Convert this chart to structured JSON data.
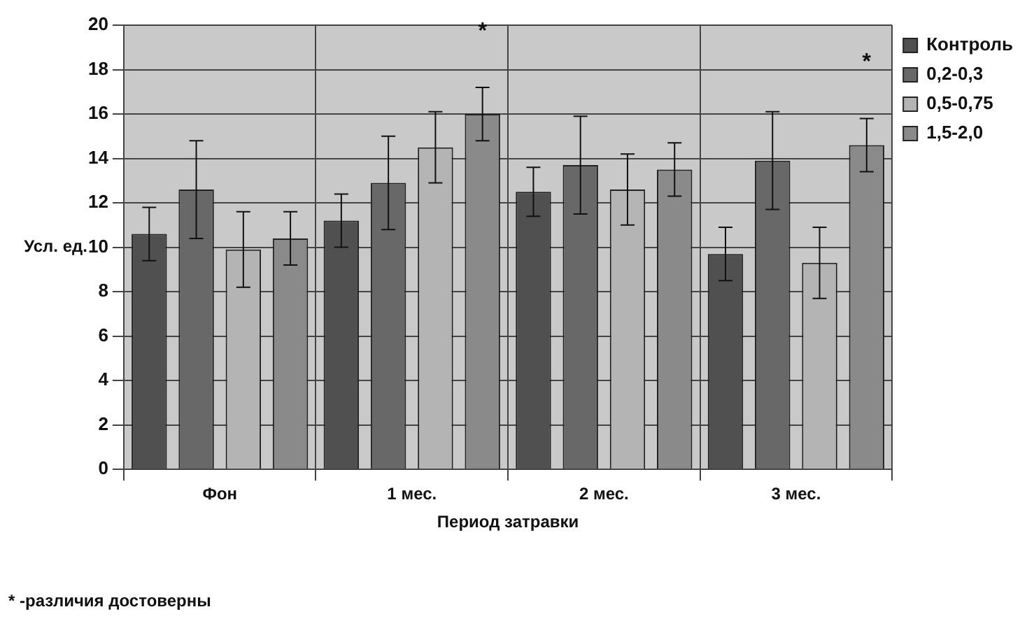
{
  "chart_data": {
    "type": "bar",
    "ylabel": "Усл. ед.",
    "xlabel": "Период затравки",
    "categories": [
      "Фон",
      "1 мес.",
      "2 мес.",
      "3 мес."
    ],
    "series": [
      {
        "name": "Контроль",
        "color": "#505050",
        "values": [
          10.6,
          11.2,
          12.5,
          9.7
        ],
        "errors": [
          1.2,
          1.2,
          1.1,
          1.2
        ]
      },
      {
        "name": "0,2-0,3",
        "color": "#686868",
        "values": [
          12.6,
          12.9,
          13.7,
          13.9
        ],
        "errors": [
          2.2,
          2.1,
          2.2,
          2.2
        ]
      },
      {
        "name": "0,5-0,75",
        "color": "#b4b4b4",
        "values": [
          9.9,
          14.5,
          12.6,
          9.3
        ],
        "errors": [
          1.7,
          1.6,
          1.6,
          1.6
        ]
      },
      {
        "name": "1,5-2,0",
        "color": "#8a8a8a",
        "values": [
          10.4,
          16.0,
          13.5,
          14.6
        ],
        "errors": [
          1.2,
          1.2,
          1.2,
          1.2
        ]
      }
    ],
    "ylim": [
      0,
      20
    ],
    "yticks": [
      0,
      2,
      4,
      6,
      8,
      10,
      12,
      14,
      16,
      18,
      20
    ],
    "grid": true,
    "legend": "top right",
    "annotations": [
      "*",
      "*",
      "* -различия достоверны"
    ]
  }
}
